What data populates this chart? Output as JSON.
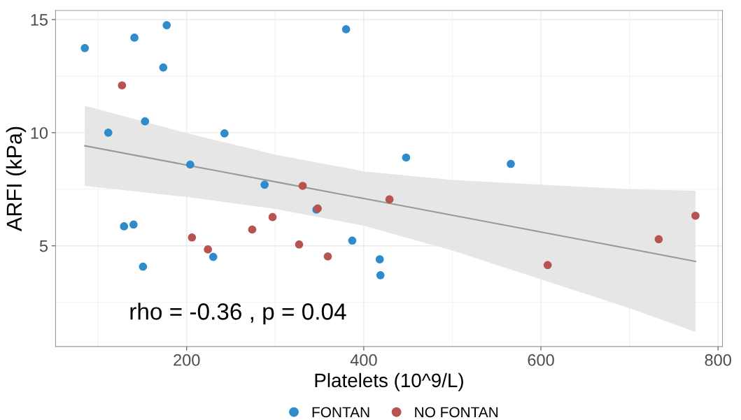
{
  "chart_data": {
    "type": "scatter",
    "xlabel": "Platelets (10^9/L)",
    "ylabel": "ARFI (kPa)",
    "xlim": [
      52,
      805
    ],
    "ylim": [
      0.55,
      15.4
    ],
    "xticks": [
      200,
      400,
      600,
      800
    ],
    "yticks": [
      5,
      10,
      15
    ],
    "grid": true,
    "legend": "bottom",
    "marker": "circle",
    "annotations": [
      "rho = -0.36 , p = 0.04"
    ],
    "series": [
      {
        "name": "FONTAN",
        "color": "#2e8bcc",
        "x": [
          85,
          141,
          177.5,
          173.6,
          111.5,
          153,
          242.7,
          204,
          288,
          380,
          447.8,
          566,
          129.3,
          140,
          150.7,
          230,
          346.5,
          387,
          418,
          418.8
        ],
        "values": [
          13.74,
          14.2,
          14.75,
          12.88,
          10.0,
          10.5,
          9.97,
          8.59,
          7.7,
          14.57,
          8.9,
          8.62,
          5.86,
          5.94,
          4.08,
          4.51,
          6.6,
          5.23,
          4.4,
          3.7
        ]
      },
      {
        "name": "NO FONTAN",
        "color": "#b85450",
        "x": [
          127,
          331,
          206,
          224,
          274,
          297,
          327,
          348,
          359.4,
          429,
          607.6,
          733,
          774.5
        ],
        "values": [
          12.09,
          7.65,
          5.37,
          4.84,
          5.72,
          6.27,
          5.06,
          6.65,
          4.53,
          7.05,
          4.15,
          5.29,
          6.33
        ]
      },
      {
        "type": "line",
        "color": "#999999",
        "marker": "none",
        "line_style": "solid",
        "x": [
          85,
          200,
          300,
          400,
          500,
          600,
          700,
          774.5
        ],
        "values": [
          9.42,
          8.57,
          7.83,
          7.09,
          6.35,
          5.61,
          4.87,
          4.31
        ],
        "lower": [
          7.65,
          7.16,
          6.63,
          5.89,
          4.79,
          3.52,
          2.24,
          1.19
        ],
        "upper": [
          11.19,
          9.98,
          9.03,
          8.29,
          7.91,
          7.7,
          7.5,
          7.43
        ]
      }
    ]
  }
}
